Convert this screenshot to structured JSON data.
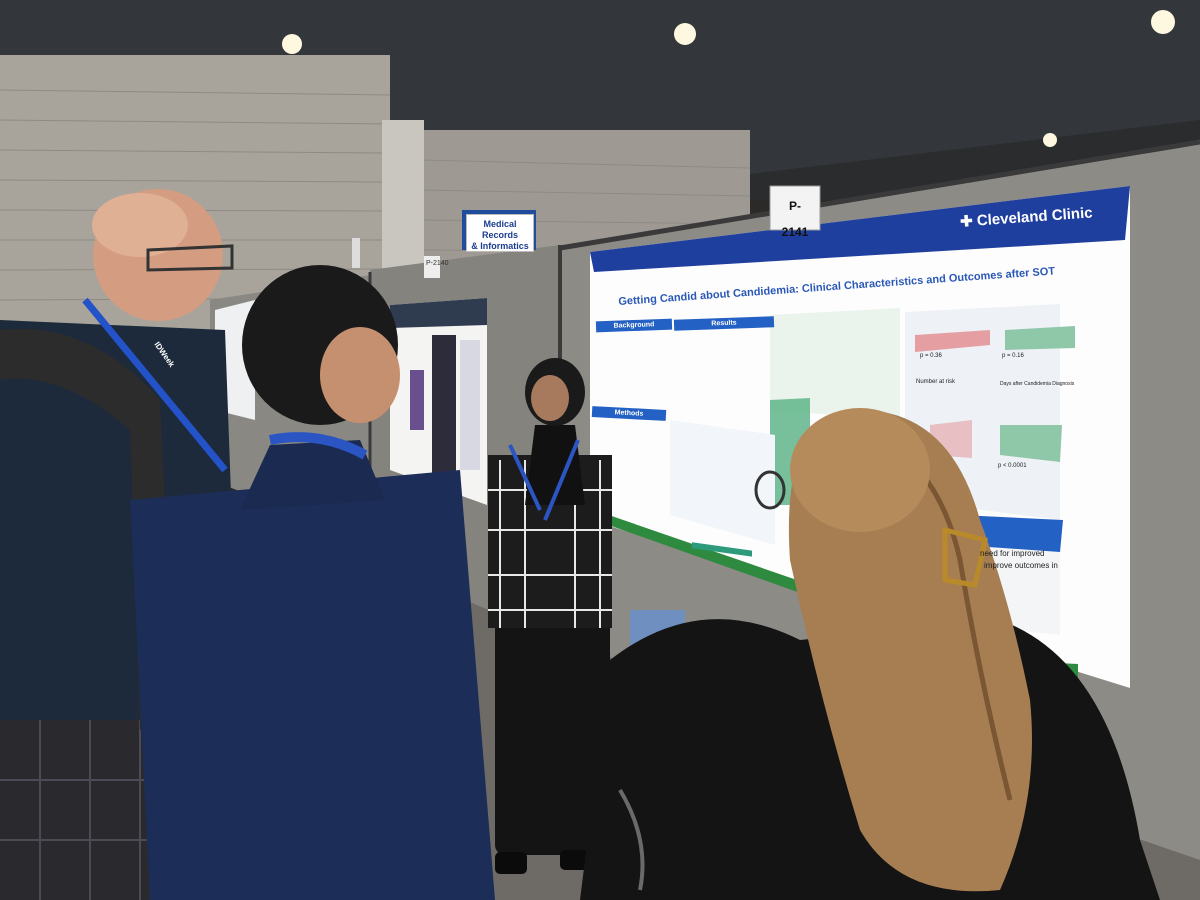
{
  "booth": {
    "number_tag": "P-2141",
    "neighbor_tag": "P-2140"
  },
  "hall_sign": {
    "line1": "Medical Records",
    "line2": "& Informatics"
  },
  "poster": {
    "brand": "Cleveland Clinic",
    "title": "Getting Candid about Candidemia: Clinical Characteristics and Outcomes after SOT",
    "sections": {
      "background": "Background",
      "methods": "Methods",
      "results": "Results"
    },
    "km_stats": {
      "p1": "p = 0.36",
      "p2": "p = 0.16",
      "p3": "p < 0.0001",
      "number_at_risk": "Number at risk",
      "days_after": "Days after Candidemia Diagnosis"
    },
    "conclusion_snippet": "need for improved",
    "conclusion_snippet2": "improve outcomes in"
  },
  "lanyard_text": "IDWeek",
  "colors": {
    "poster_blue": "#2461c4",
    "cc_navy": "#1f3f9e",
    "poster_green": "#2e8a3e",
    "panel_gray": "#8d8b86"
  }
}
